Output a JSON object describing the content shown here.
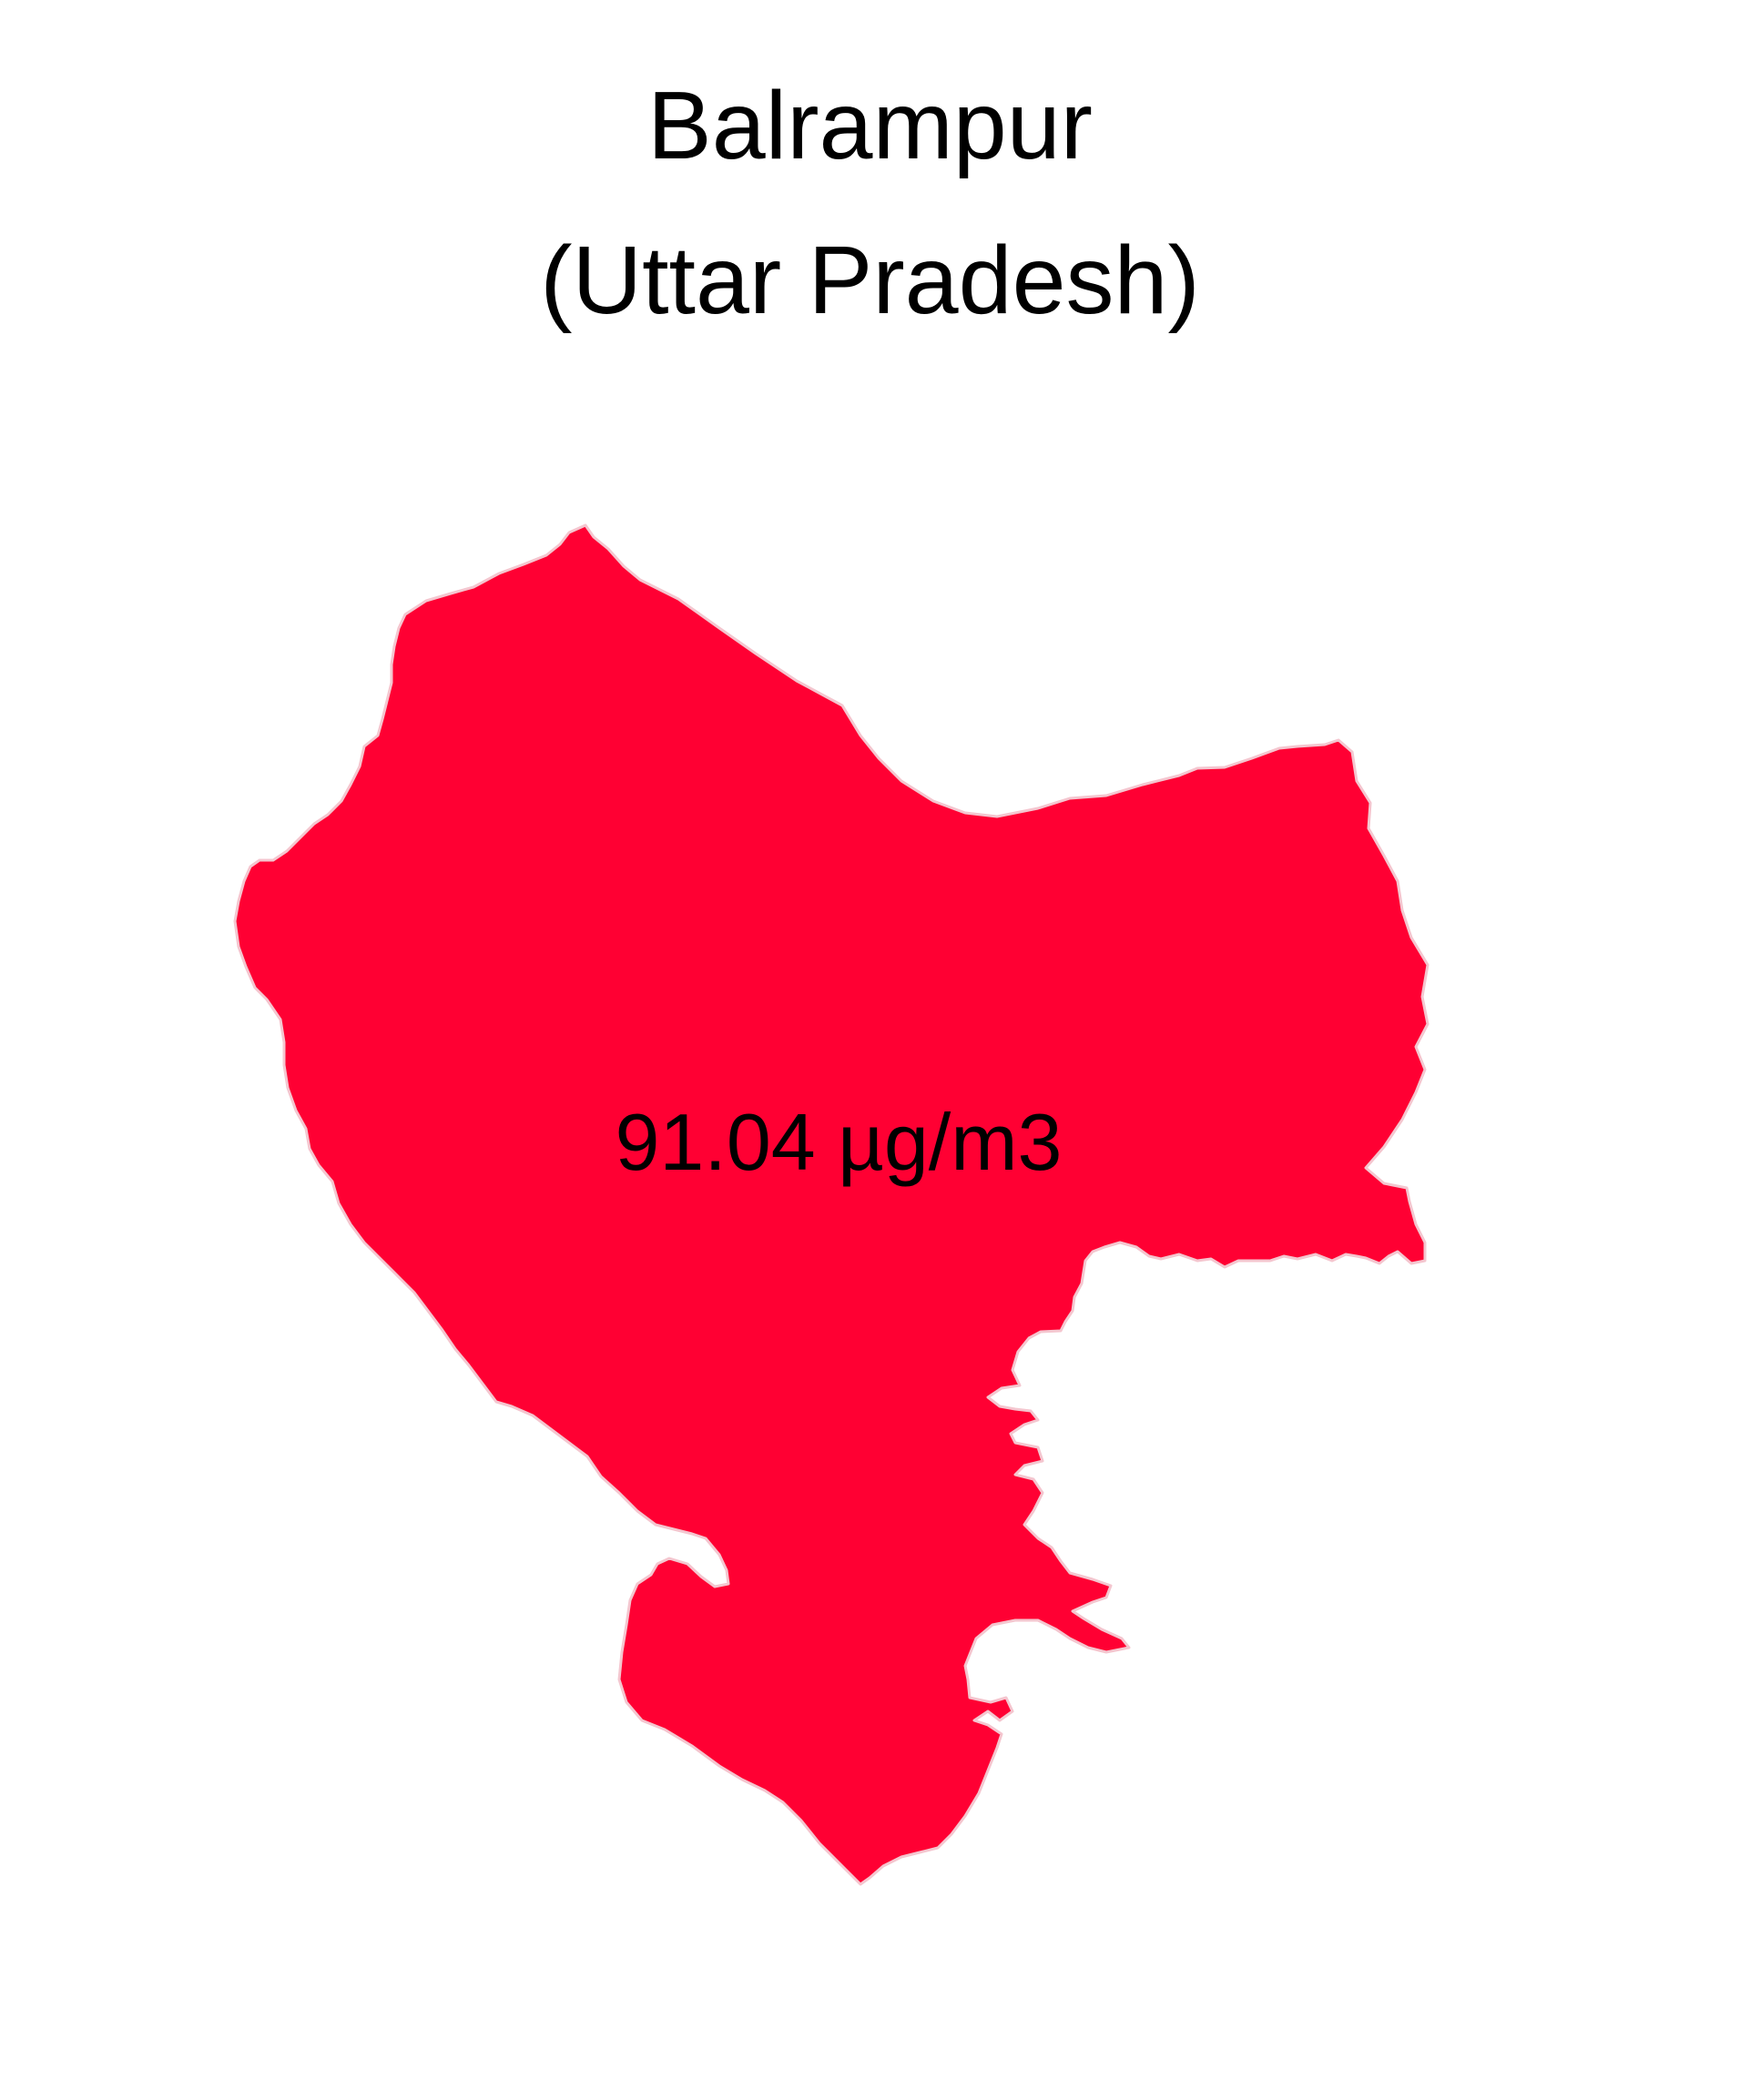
{
  "map": {
    "title_line_1": "Balrampur",
    "title_line_2": "(Uttar Pradesh)",
    "district": "Balrampur",
    "state": "Uttar Pradesh",
    "value_label": "91.04 µg/m3",
    "value": 91.04,
    "unit": "µg/m3",
    "fill_color": "#ff0033",
    "border_color": "#f4c6cf",
    "background_color": "#ffffff"
  }
}
